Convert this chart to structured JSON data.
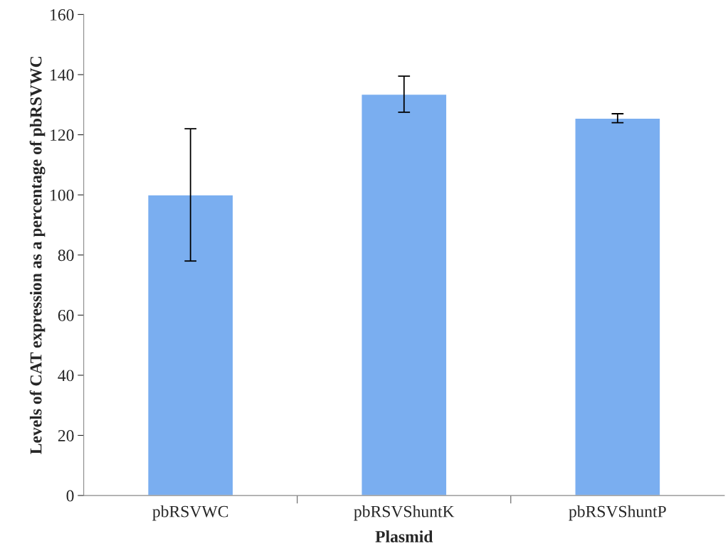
{
  "chart_data": {
    "type": "bar",
    "xlabel": "Plasmid",
    "ylabel": "Levels of CAT expression as a percentage of pbRSVWC",
    "categories": [
      "pbRSVWC",
      "pbRSVShuntK",
      "pbRSVShuntP"
    ],
    "values": [
      100,
      133.5,
      125.5
    ],
    "errors": [
      22,
      6,
      1.5
    ],
    "color": "#7aaef0",
    "ylim": [
      0,
      160
    ],
    "yticks": [
      0,
      20,
      40,
      60,
      80,
      100,
      120,
      140,
      160
    ],
    "grid": false
  }
}
